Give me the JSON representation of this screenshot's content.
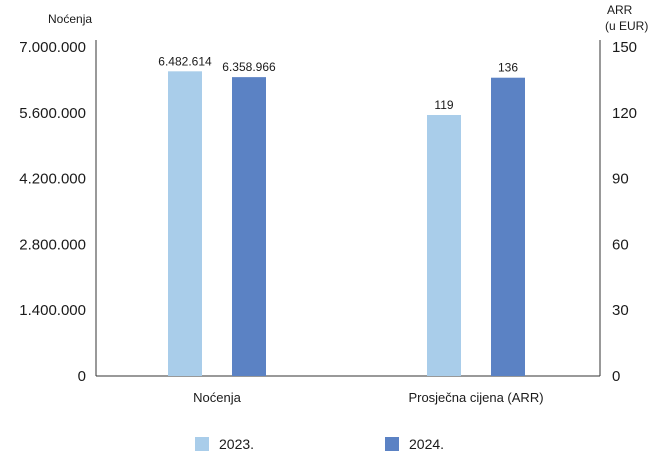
{
  "chart_data": {
    "type": "bar",
    "categories": [
      "Noćenja",
      "Prosječna cijena (ARR)"
    ],
    "series": [
      {
        "name": "2023.",
        "values": [
          6482614,
          119
        ],
        "color": "#a9cdea"
      },
      {
        "name": "2024.",
        "values": [
          6358966,
          136
        ],
        "color": "#5b82c4"
      }
    ],
    "data_labels": {
      "2023.": [
        "6.482.614",
        "119"
      ],
      "2024.": [
        "6.358.966",
        "136"
      ]
    },
    "y_left": {
      "label": "Noćenja",
      "ylim": [
        0,
        7000000
      ],
      "ticks": [
        0,
        1400000,
        2800000,
        4200000,
        5600000,
        7000000
      ],
      "tick_labels": [
        "0",
        "1.400.000",
        "2.800.000",
        "4.200.000",
        "5.600.000",
        "7.000.000"
      ]
    },
    "y_right": {
      "label_line1": "ARR",
      "label_line2": "(u EUR)",
      "ylim": [
        0,
        150
      ],
      "ticks": [
        0,
        30,
        60,
        90,
        120,
        150
      ],
      "tick_labels": [
        "0",
        "30",
        "60",
        "90",
        "120",
        "150"
      ]
    },
    "category_axis": [
      "left",
      "right"
    ],
    "grid": false,
    "legend_position": "bottom"
  }
}
